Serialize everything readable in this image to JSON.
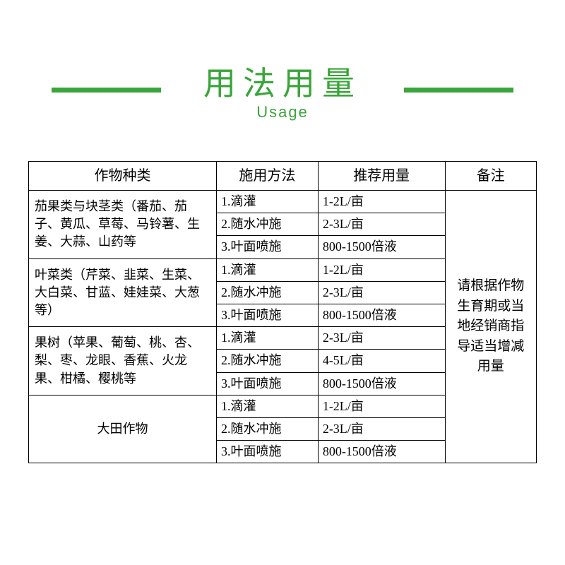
{
  "colors": {
    "accent": "#3aa53a",
    "line": "#3aa53a",
    "text": "#000000",
    "border": "#000000",
    "bg": "#ffffff"
  },
  "title": {
    "cn": "用法用量",
    "en": "Usage"
  },
  "columns": [
    "作物种类",
    "施用方法",
    "推荐用量",
    "备注"
  ],
  "note": "请根据作物生育期或当地经销商指导适当增减用量",
  "groups": [
    {
      "crop": "茄果类与块茎类（番茄、茄子、黄瓜、草莓、马铃薯、生姜、大蒜、山药等",
      "center": false,
      "rows": [
        {
          "method": "1.滴灌",
          "amount": "1-2L/亩"
        },
        {
          "method": "2.随水冲施",
          "amount": "2-3L/亩"
        },
        {
          "method": "3.叶面喷施",
          "amount": "800-1500倍液"
        }
      ]
    },
    {
      "crop": "叶菜类（芹菜、韭菜、生菜、大白菜、甘蓝、娃娃菜、大葱等）",
      "center": false,
      "rows": [
        {
          "method": "1.滴灌",
          "amount": "1-2L/亩"
        },
        {
          "method": "2.随水冲施",
          "amount": "2-3L/亩"
        },
        {
          "method": "3.叶面喷施",
          "amount": "800-1500倍液"
        }
      ]
    },
    {
      "crop": "果树（苹果、葡萄、桃、杏、梨、枣、龙眼、香蕉、火龙果、柑橘、樱桃等",
      "center": false,
      "rows": [
        {
          "method": "1.滴灌",
          "amount": "2-3L/亩"
        },
        {
          "method": "2.随水冲施",
          "amount": "4-5L/亩"
        },
        {
          "method": "3.叶面喷施",
          "amount": "800-1500倍液"
        }
      ]
    },
    {
      "crop": "大田作物",
      "center": true,
      "rows": [
        {
          "method": "1.滴灌",
          "amount": "1-2L/亩"
        },
        {
          "method": "2.随水冲施",
          "amount": "2-3L/亩"
        },
        {
          "method": "3.叶面喷施",
          "amount": "800-1500倍液"
        }
      ]
    }
  ]
}
